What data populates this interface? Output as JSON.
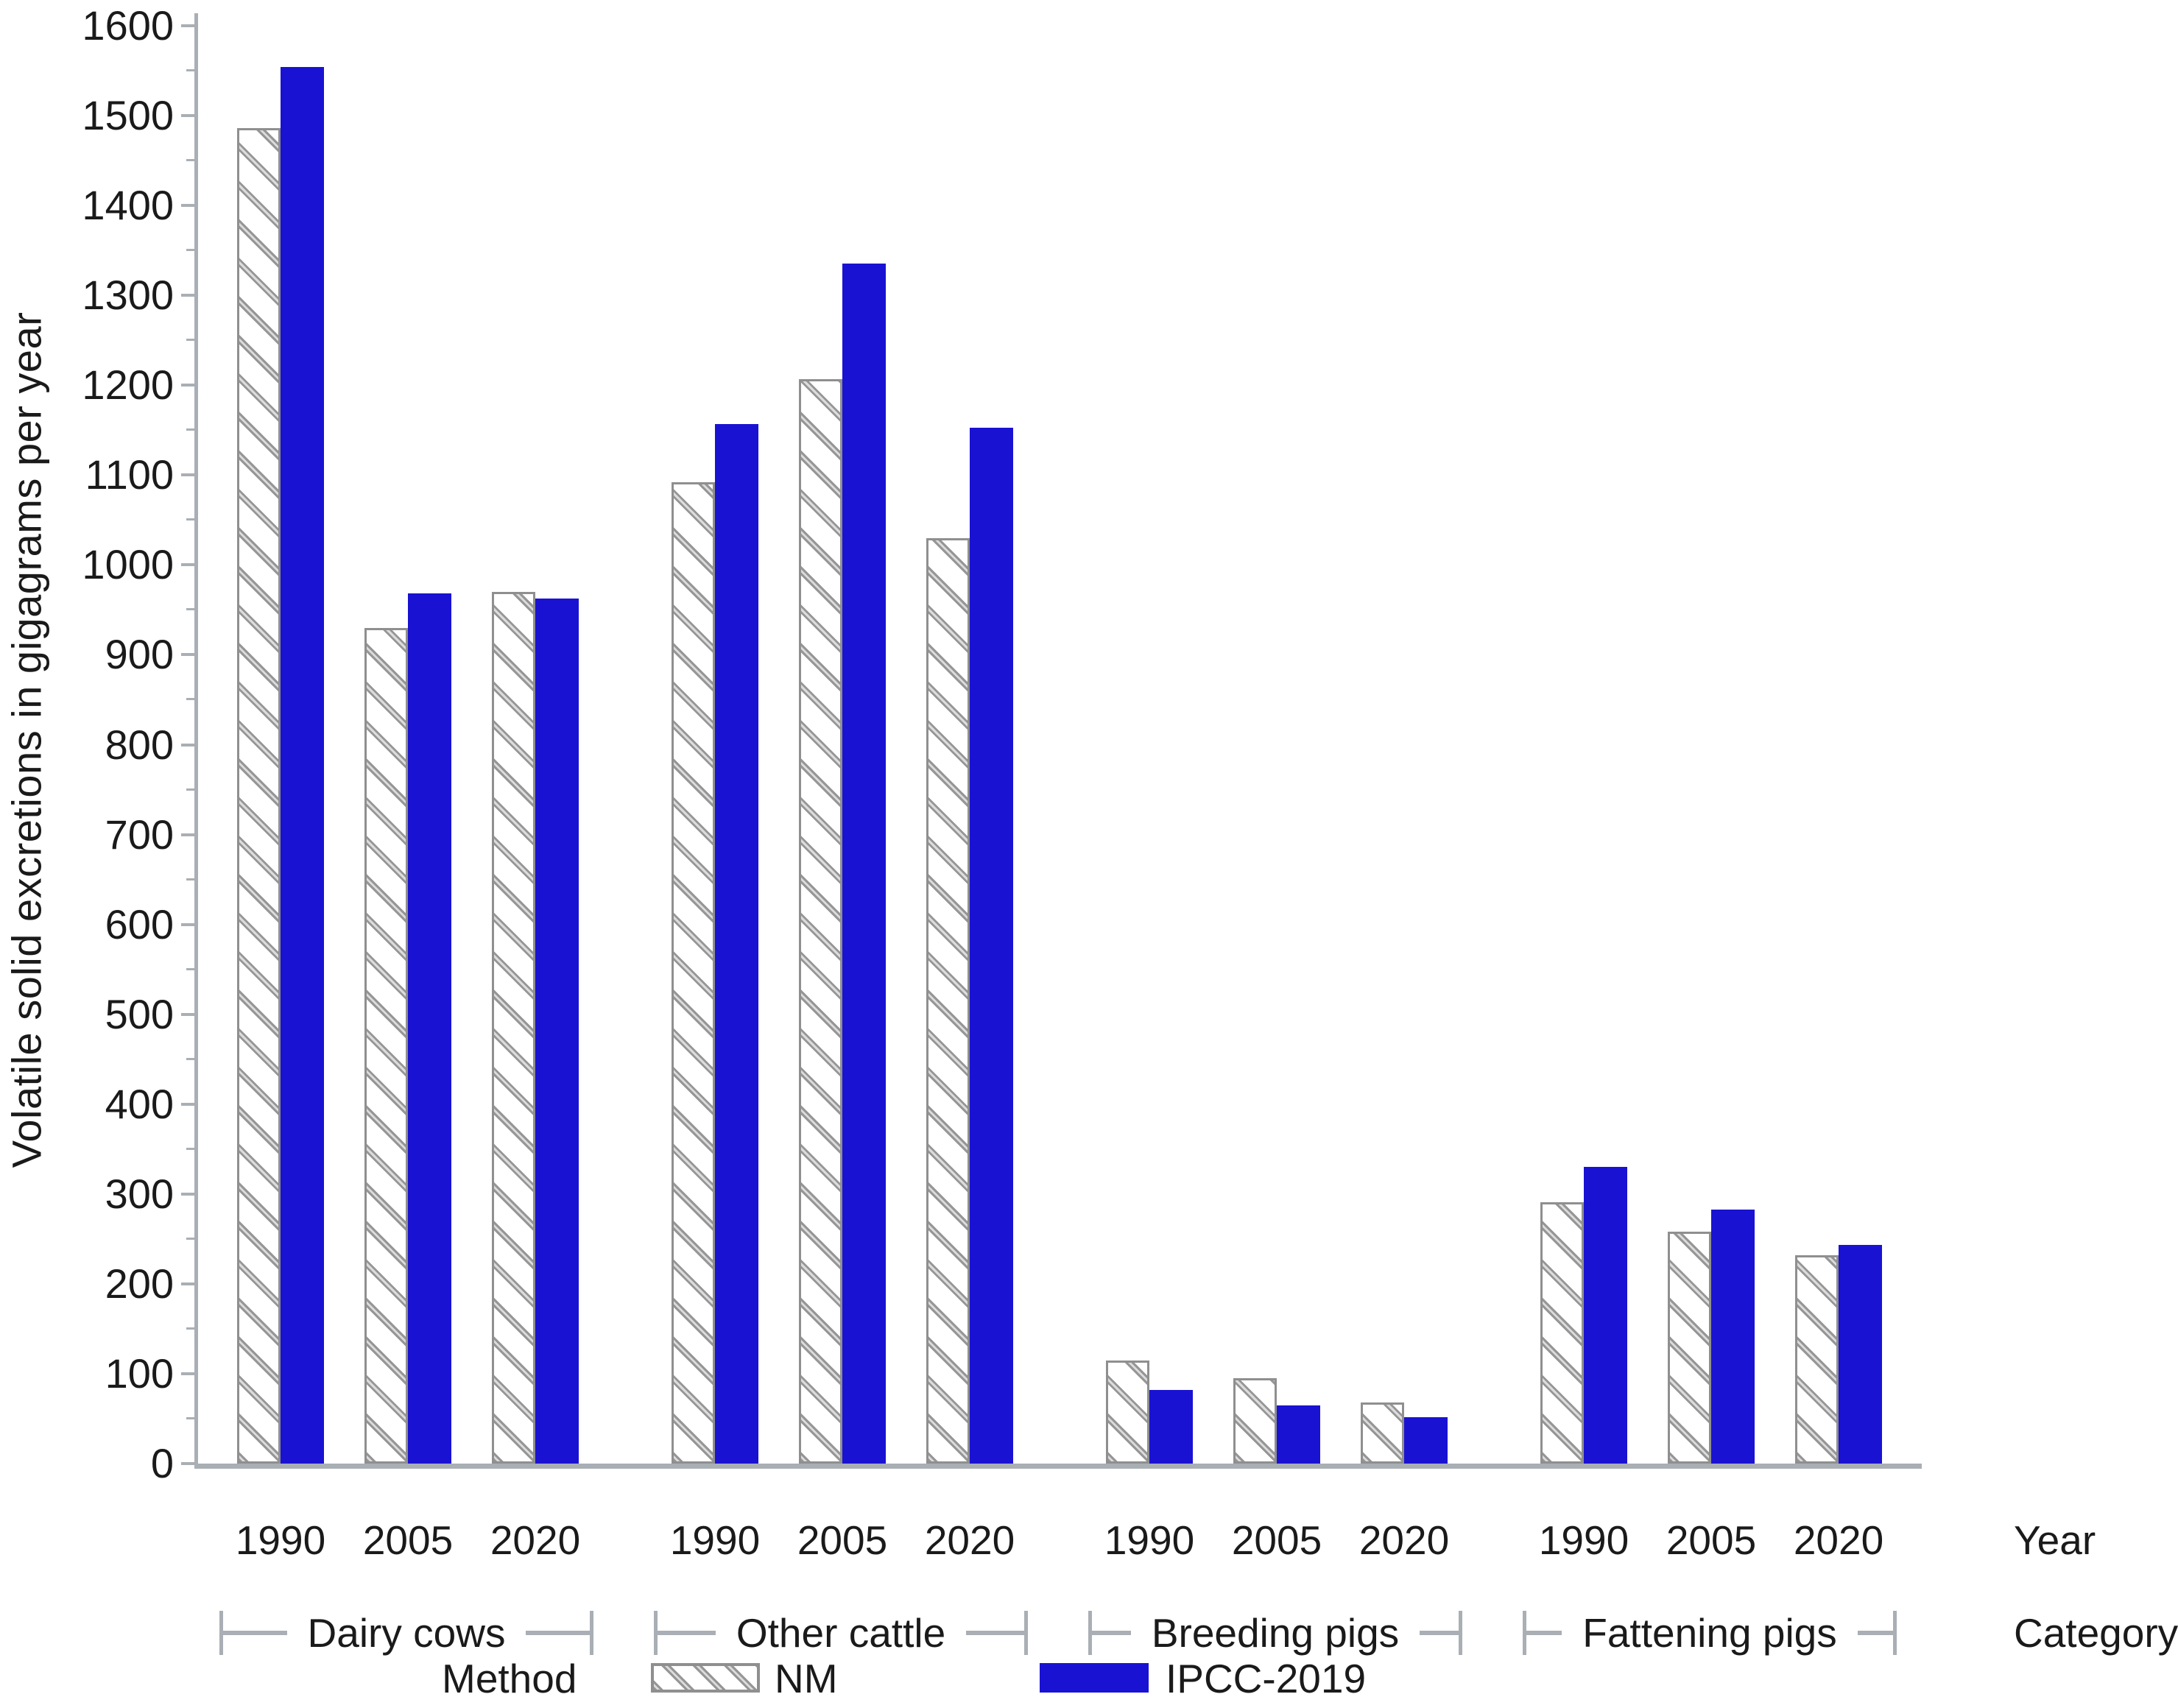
{
  "chart_data": {
    "type": "bar",
    "title": "",
    "ylabel": "Volatile solid excretions in gigagrams per year",
    "xlabel": "Year",
    "category_axis_label": "Category",
    "legend_title": "Method",
    "legend_position": "bottom",
    "grid": false,
    "ylim": [
      0,
      1600
    ],
    "ytick_interval": 100,
    "ytick_minor_interval": 50,
    "categories": [
      "Dairy cows",
      "Other cattle",
      "Breeding pigs",
      "Fattening pigs"
    ],
    "x": [
      "1990",
      "2005",
      "2020"
    ],
    "series": [
      {
        "name": "NM",
        "style": "hatched",
        "values": {
          "Dairy cows": [
            1486,
            930,
            970
          ],
          "Other cattle": [
            1092,
            1207,
            1030
          ],
          "Breeding pigs": [
            115,
            95,
            68
          ],
          "Fattening pigs": [
            291,
            258,
            232
          ]
        }
      },
      {
        "name": "IPCC-2019",
        "style": "solid",
        "color": "#1a12d2",
        "values": {
          "Dairy cows": [
            1554,
            968,
            963
          ],
          "Other cattle": [
            1157,
            1335,
            1153
          ],
          "Breeding pigs": [
            82,
            65,
            52
          ],
          "Fattening pigs": [
            330,
            283,
            243
          ]
        }
      }
    ]
  },
  "colors": {
    "bar_blue": "#1a12d2",
    "axis_gray": "#a9afb4",
    "hatch_gray": "#969696",
    "bar_border_gray": "#8f8f8f",
    "text": "#1a1a1a"
  }
}
